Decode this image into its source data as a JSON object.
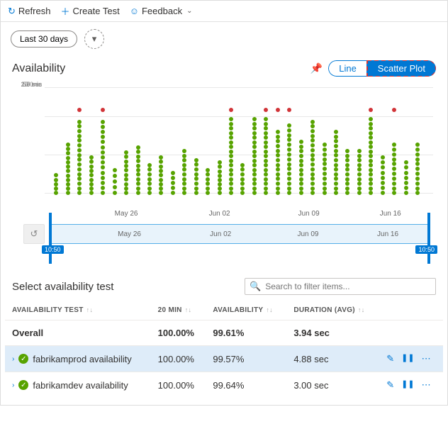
{
  "toolbar": {
    "refresh": "Refresh",
    "create": "Create Test",
    "feedback": "Feedback"
  },
  "filters": {
    "range": "Last 30 days"
  },
  "availability": {
    "title": "Availability",
    "view_line": "Line",
    "view_scatter": "Scatter Plot",
    "y_ticks": [
      {
        "label": "2.5 min",
        "pct": 5
      },
      {
        "label": "1.7 min",
        "pct": 28
      },
      {
        "label": "50 sec",
        "pct": 58
      },
      {
        "label": "0.0ms",
        "pct": 88
      }
    ],
    "x_ticks": [
      {
        "label": "May 26",
        "pct": 21
      },
      {
        "label": "Jun 02",
        "pct": 45
      },
      {
        "label": "Jun 09",
        "pct": 68
      },
      {
        "label": "Jun 16",
        "pct": 89
      }
    ],
    "colors": {
      "green": "#57a300",
      "red": "#d13438"
    },
    "scatter_columns": [
      {
        "x": 3,
        "gmin": 74,
        "gmax": 88,
        "n": 5
      },
      {
        "x": 6,
        "gmin": 50,
        "gmax": 88,
        "n": 12
      },
      {
        "x": 9,
        "gmin": 32,
        "gmax": 88,
        "n": 16,
        "red": true
      },
      {
        "x": 12,
        "gmin": 60,
        "gmax": 88,
        "n": 9
      },
      {
        "x": 15,
        "gmin": 32,
        "gmax": 88,
        "n": 15,
        "red": true
      },
      {
        "x": 18,
        "gmin": 70,
        "gmax": 88,
        "n": 5
      },
      {
        "x": 21,
        "gmin": 56,
        "gmax": 88,
        "n": 10
      },
      {
        "x": 24,
        "gmin": 52,
        "gmax": 88,
        "n": 11
      },
      {
        "x": 27,
        "gmin": 66,
        "gmax": 88,
        "n": 7
      },
      {
        "x": 30,
        "gmin": 60,
        "gmax": 88,
        "n": 9
      },
      {
        "x": 33,
        "gmin": 72,
        "gmax": 88,
        "n": 5
      },
      {
        "x": 36,
        "gmin": 55,
        "gmax": 88,
        "n": 10
      },
      {
        "x": 39,
        "gmin": 62,
        "gmax": 88,
        "n": 8
      },
      {
        "x": 42,
        "gmin": 70,
        "gmax": 88,
        "n": 6
      },
      {
        "x": 45,
        "gmin": 64,
        "gmax": 88,
        "n": 8
      },
      {
        "x": 48,
        "gmin": 30,
        "gmax": 88,
        "n": 17,
        "red": true
      },
      {
        "x": 51,
        "gmin": 66,
        "gmax": 88,
        "n": 7
      },
      {
        "x": 54,
        "gmin": 30,
        "gmax": 88,
        "n": 17
      },
      {
        "x": 57,
        "gmin": 30,
        "gmax": 88,
        "n": 17,
        "red": true
      },
      {
        "x": 60,
        "gmin": 40,
        "gmax": 88,
        "n": 14,
        "red": true
      },
      {
        "x": 63,
        "gmin": 35,
        "gmax": 88,
        "n": 15,
        "red": true
      },
      {
        "x": 66,
        "gmin": 48,
        "gmax": 88,
        "n": 12
      },
      {
        "x": 69,
        "gmin": 32,
        "gmax": 88,
        "n": 16
      },
      {
        "x": 72,
        "gmin": 50,
        "gmax": 88,
        "n": 11
      },
      {
        "x": 75,
        "gmin": 40,
        "gmax": 88,
        "n": 14
      },
      {
        "x": 78,
        "gmin": 55,
        "gmax": 88,
        "n": 10
      },
      {
        "x": 81,
        "gmin": 55,
        "gmax": 88,
        "n": 10
      },
      {
        "x": 84,
        "gmin": 30,
        "gmax": 88,
        "n": 17,
        "red": true
      },
      {
        "x": 87,
        "gmin": 60,
        "gmax": 88,
        "n": 8
      },
      {
        "x": 90,
        "gmin": 50,
        "gmax": 88,
        "n": 11,
        "red": true
      },
      {
        "x": 93,
        "gmin": 64,
        "gmax": 88,
        "n": 7
      },
      {
        "x": 96,
        "gmin": 50,
        "gmax": 88,
        "n": 11
      }
    ],
    "range_x_ticks": [
      {
        "label": "May 26",
        "pct": 21
      },
      {
        "label": "Jun 02",
        "pct": 45
      },
      {
        "label": "Jun 09",
        "pct": 68
      },
      {
        "label": "Jun 16",
        "pct": 89
      }
    ],
    "time_from": "10:50",
    "time_to": "10:50"
  },
  "tests": {
    "title": "Select availability test",
    "search_placeholder": "Search to filter items...",
    "columns": {
      "c1": "AVAILABILITY TEST",
      "c2": "20 MIN",
      "c3": "AVAILABILITY",
      "c4": "DURATION (AVG)"
    },
    "rows": [
      {
        "name": "Overall",
        "min20": "100.00%",
        "avail": "99.61%",
        "dur": "3.94 sec",
        "overall": true
      },
      {
        "name": "fabrikamprod availability",
        "min20": "100.00%",
        "avail": "99.57%",
        "dur": "4.88 sec",
        "selected": true,
        "status": "ok"
      },
      {
        "name": "fabrikamdev availability",
        "min20": "100.00%",
        "avail": "99.64%",
        "dur": "3.00 sec",
        "status": "ok"
      }
    ]
  }
}
